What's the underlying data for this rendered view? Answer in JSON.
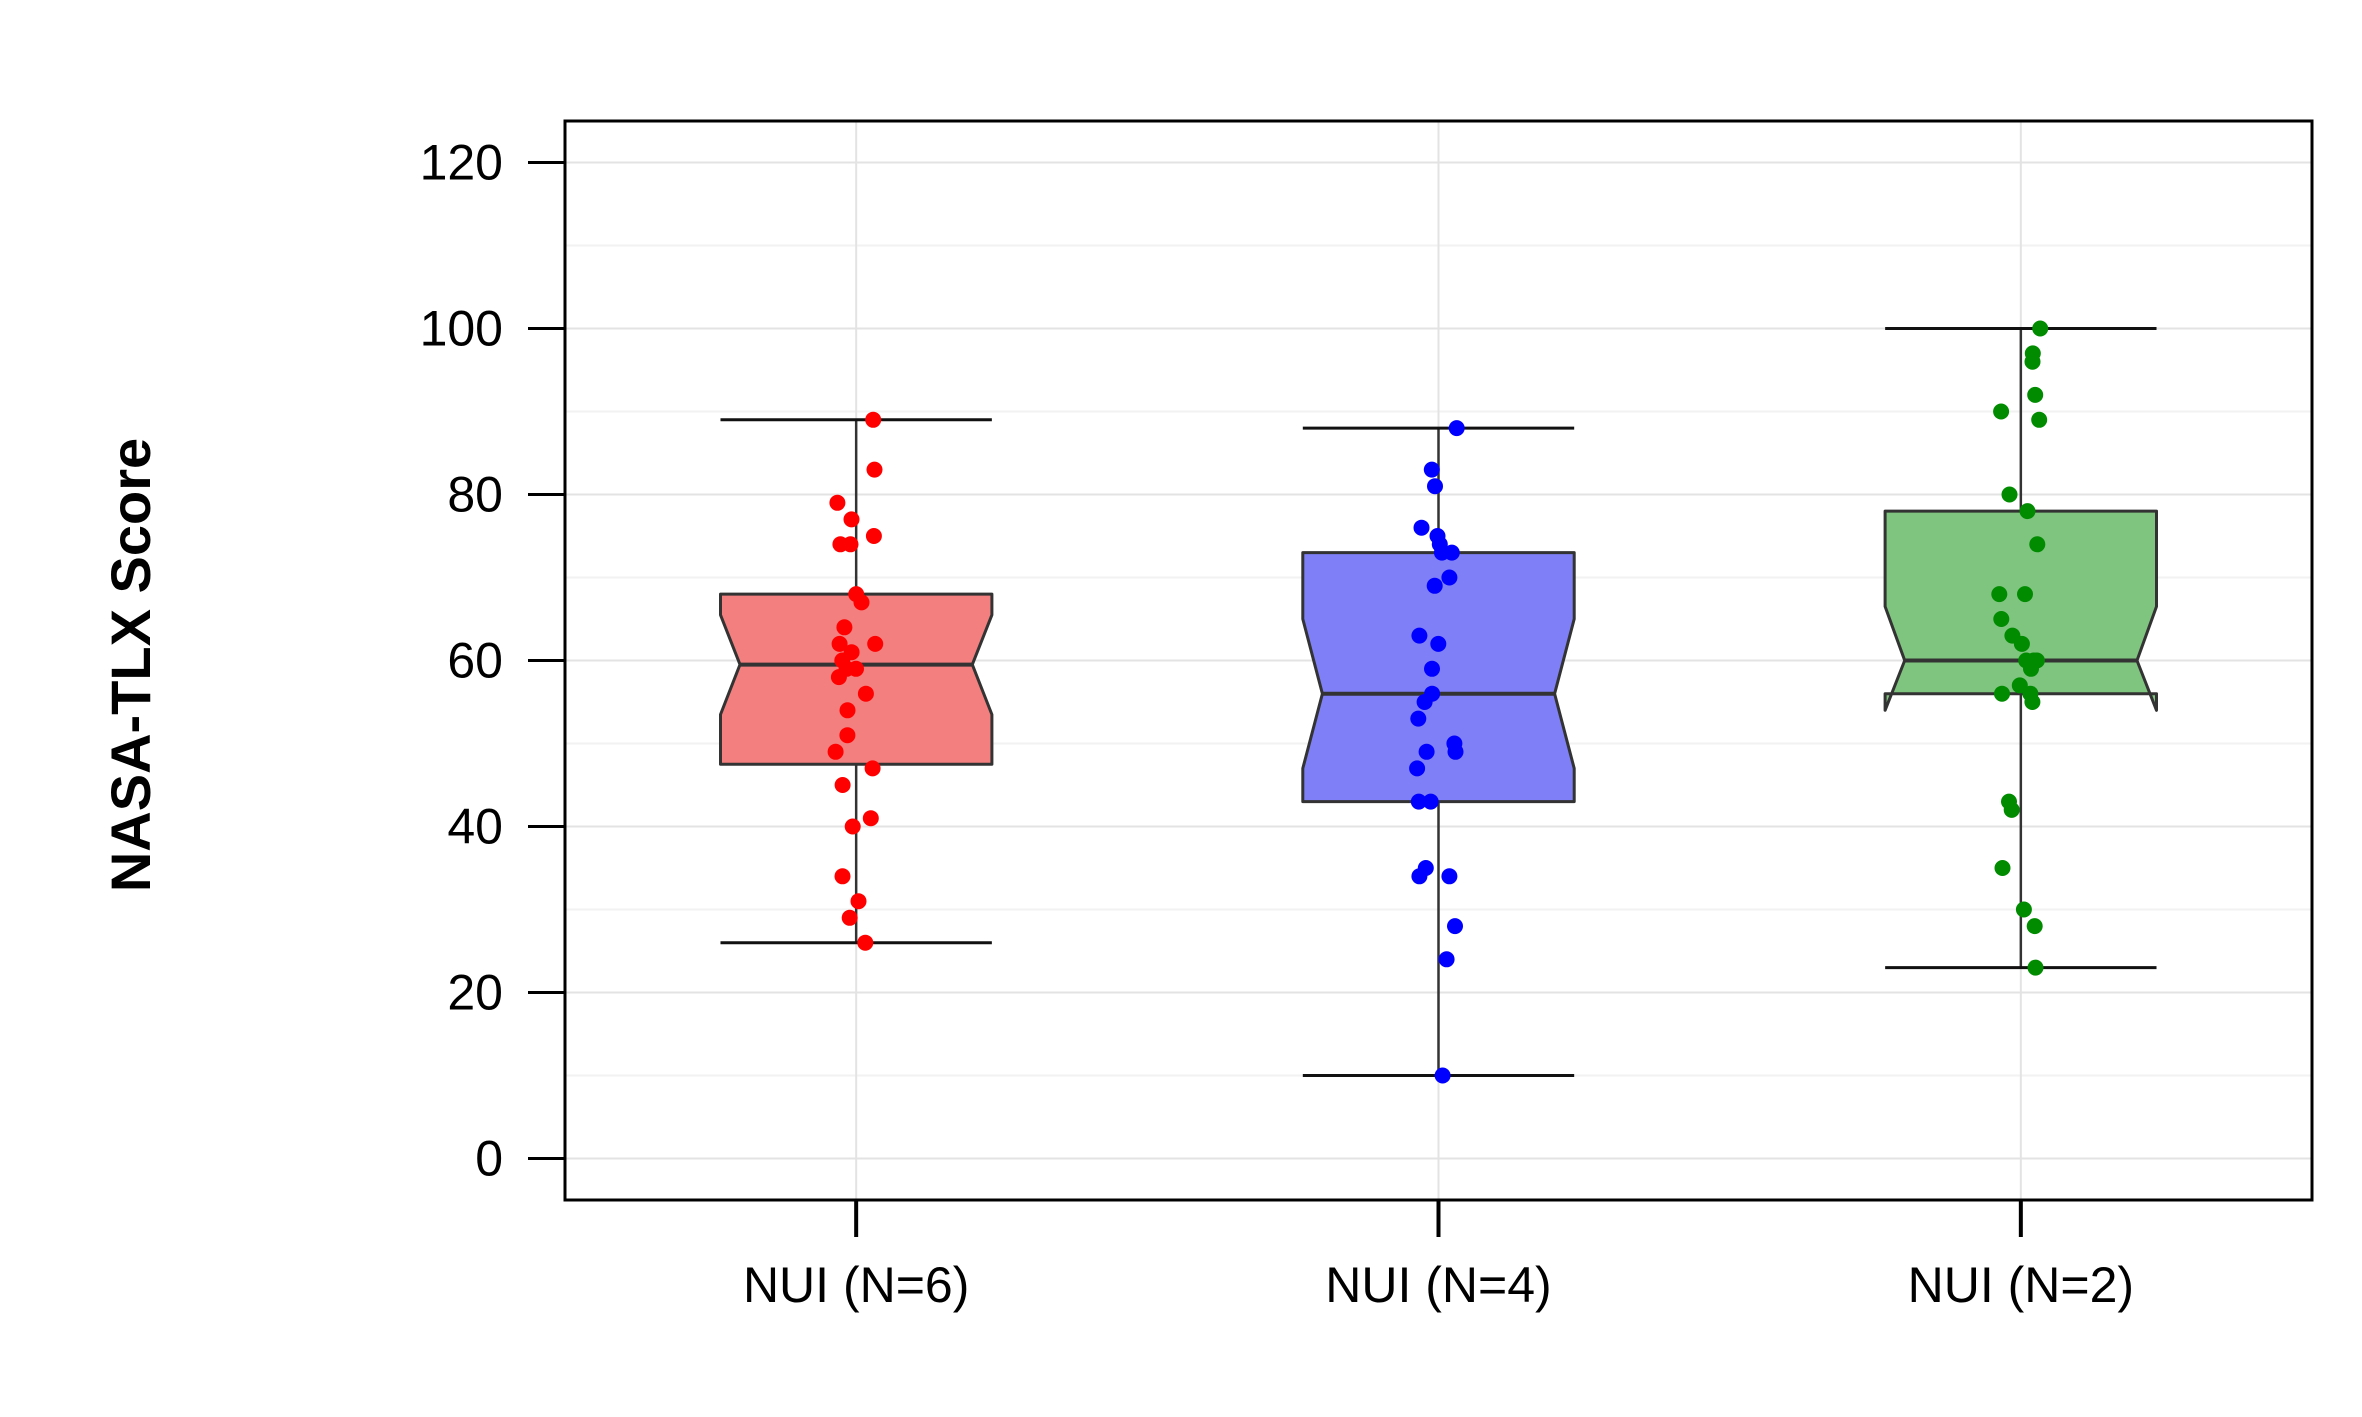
{
  "chart_data": {
    "type": "boxplot",
    "title": "",
    "xlabel": "",
    "ylabel": "NASA-TLX Score",
    "ylim": [
      -5,
      125
    ],
    "y_ticks": [
      0,
      20,
      40,
      60,
      80,
      100,
      120
    ],
    "grid": true,
    "notched": true,
    "categories": [
      "NUI (N=6)",
      "NUI (N=4)",
      "NUI (N=2)"
    ],
    "boxes": [
      {
        "category": "NUI (N=6)",
        "fill": "#F47F7F",
        "point_color": "#FF0000",
        "whisker_low": 26,
        "q1": 47.5,
        "median": 59.5,
        "q3": 68,
        "whisker_high": 89,
        "notch_low": 53.5,
        "notch_high": 65.5,
        "points": [
          89,
          83,
          79,
          77,
          75,
          74,
          74,
          68,
          67,
          64,
          62,
          62,
          61,
          60,
          59,
          59,
          58,
          56,
          54,
          51,
          49,
          47,
          45,
          41,
          40,
          34,
          31,
          29,
          26
        ]
      },
      {
        "category": "NUI (N=4)",
        "fill": "#7F7FF7",
        "point_color": "#0000FF",
        "whisker_low": 10,
        "q1": 43,
        "median": 56,
        "q3": 73,
        "whisker_high": 88,
        "notch_low": 47,
        "notch_high": 65,
        "points": [
          88,
          83,
          81,
          76,
          75,
          74,
          73,
          73,
          70,
          69,
          63,
          62,
          59,
          56,
          55,
          53,
          50,
          49,
          49,
          47,
          43,
          43,
          35,
          34,
          34,
          28,
          24,
          10
        ]
      },
      {
        "category": "NUI (N=2)",
        "fill": "#7FC47F",
        "point_color": "#008B00",
        "whisker_low": 23,
        "q1": 56,
        "median": 60,
        "q3": 78,
        "whisker_high": 100,
        "notch_low": 54,
        "notch_high": 66.5,
        "points": [
          100,
          97,
          96,
          92,
          90,
          89,
          80,
          78,
          74,
          68,
          68,
          65,
          63,
          62,
          60,
          60,
          60,
          59,
          57,
          56,
          56,
          55,
          43,
          42,
          35,
          30,
          28,
          23
        ]
      }
    ]
  }
}
